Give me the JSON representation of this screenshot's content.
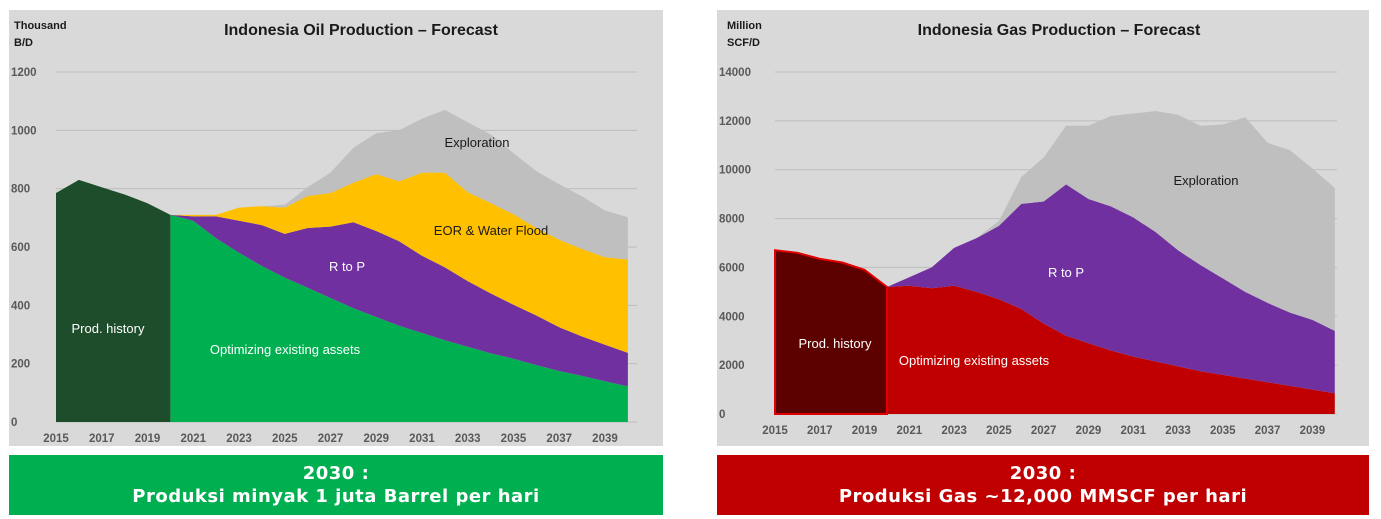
{
  "charts": [
    {
      "id": "oil",
      "title": "Indonesia Oil Production – Forecast",
      "unit": [
        "Thousand",
        "B/D"
      ],
      "colors": {
        "prod_history": "#1e4d2b",
        "existing": "#00b050",
        "rtop": "#7030a0",
        "eor": "#ffc000",
        "exploration": "#bfbfbf"
      },
      "banner": {
        "line1": "2030 :",
        "line2": "Produksi minyak 1 juta Barrel per hari",
        "color": "#00b050"
      },
      "annotations": {
        "prod_history": "Prod. history",
        "existing": "Optimizing existing assets",
        "rtop": "R to P",
        "eor": "EOR & Water Flood",
        "exploration": "Exploration"
      }
    },
    {
      "id": "gas",
      "title": "Indonesia Gas Production – Forecast",
      "unit": [
        "Million",
        "SCF/D"
      ],
      "colors": {
        "prod_history": "#5c0000",
        "existing": "#c00000",
        "rtop": "#7030a0",
        "exploration": "#bfbfbf"
      },
      "banner": {
        "line1": "2030 :",
        "line2": "Produksi Gas ~12,000 MMSCF per hari",
        "color": "#c00000"
      },
      "annotations": {
        "prod_history": "Prod. history",
        "existing": "Optimizing existing assets",
        "rtop": "R to P",
        "exploration": "Exploration"
      }
    }
  ],
  "chart_data": [
    {
      "type": "area",
      "stacked": true,
      "title": "Indonesia Oil Production – Forecast",
      "ylabel": "Thousand B/D",
      "x_tick_labels": [
        "2015",
        "2017",
        "2019",
        "2021",
        "2023",
        "2025",
        "2027",
        "2029",
        "2031",
        "2033",
        "2035",
        "2037",
        "2039"
      ],
      "y_tick_labels": [
        "0",
        "200",
        "400",
        "600",
        "800",
        "1000",
        "1200"
      ],
      "xlim": [
        2015,
        2040
      ],
      "ylim": [
        0,
        1200
      ],
      "history": {
        "name": "Prod. history",
        "x": [
          2015,
          2016,
          2017,
          2018,
          2019,
          2020
        ],
        "values": [
          785,
          830,
          805,
          780,
          750,
          710
        ]
      },
      "x": [
        2020,
        2021,
        2022,
        2023,
        2024,
        2025,
        2026,
        2027,
        2028,
        2029,
        2030,
        2031,
        2032,
        2033,
        2034,
        2035,
        2036,
        2037,
        2038,
        2039,
        2040
      ],
      "series": [
        {
          "name": "Optimizing existing assets",
          "values": [
            710,
            690,
            630,
            580,
            535,
            495,
            460,
            425,
            390,
            360,
            330,
            305,
            280,
            258,
            236,
            217,
            195,
            175,
            158,
            140,
            122
          ]
        },
        {
          "name": "R to P",
          "values": [
            0,
            15,
            75,
            110,
            140,
            150,
            205,
            245,
            295,
            295,
            290,
            265,
            250,
            225,
            205,
            185,
            170,
            150,
            135,
            125,
            115
          ]
        },
        {
          "name": "EOR & Water Flood",
          "values": [
            0,
            5,
            5,
            45,
            65,
            90,
            110,
            115,
            135,
            195,
            205,
            285,
            325,
            305,
            310,
            310,
            300,
            300,
            300,
            300,
            320
          ]
        },
        {
          "name": "Exploration",
          "values": [
            0,
            0,
            0,
            0,
            0,
            10,
            30,
            70,
            120,
            140,
            175,
            185,
            215,
            240,
            235,
            210,
            195,
            190,
            180,
            160,
            145
          ]
        }
      ]
    },
    {
      "type": "area",
      "stacked": true,
      "title": "Indonesia Gas Production – Forecast",
      "ylabel": "Million SCF/D",
      "x_tick_labels": [
        "2015",
        "2017",
        "2019",
        "2021",
        "2023",
        "2025",
        "2027",
        "2029",
        "2031",
        "2033",
        "2035",
        "2037",
        "2039"
      ],
      "y_tick_labels": [
        "0",
        "2000",
        "4000",
        "6000",
        "8000",
        "10000",
        "12000",
        "14000"
      ],
      "xlim": [
        2015,
        2040
      ],
      "ylim": [
        0,
        14000
      ],
      "history": {
        "name": "Prod. history",
        "x": [
          2015,
          2016,
          2017,
          2018,
          2019,
          2020
        ],
        "values": [
          6700,
          6600,
          6350,
          6200,
          5900,
          5200
        ]
      },
      "x": [
        2020,
        2021,
        2022,
        2023,
        2024,
        2025,
        2026,
        2027,
        2028,
        2029,
        2030,
        2031,
        2032,
        2033,
        2034,
        2035,
        2036,
        2037,
        2038,
        2039,
        2040
      ],
      "series": [
        {
          "name": "Optimizing existing assets",
          "values": [
            5200,
            5250,
            5150,
            5250,
            5000,
            4700,
            4300,
            3700,
            3200,
            2900,
            2600,
            2350,
            2150,
            1950,
            1750,
            1600,
            1450,
            1300,
            1150,
            1000,
            850
          ]
        },
        {
          "name": "R to P",
          "values": [
            0,
            350,
            850,
            1550,
            2200,
            3000,
            4300,
            5000,
            6200,
            5900,
            5900,
            5700,
            5300,
            4750,
            4350,
            3950,
            3550,
            3250,
            3000,
            2850,
            2550
          ]
        },
        {
          "name": "Exploration",
          "values": [
            0,
            0,
            0,
            0,
            0,
            200,
            1100,
            1800,
            2400,
            3000,
            3700,
            4250,
            4950,
            5550,
            5700,
            6300,
            7150,
            6550,
            6650,
            6200,
            5850
          ]
        }
      ]
    }
  ]
}
